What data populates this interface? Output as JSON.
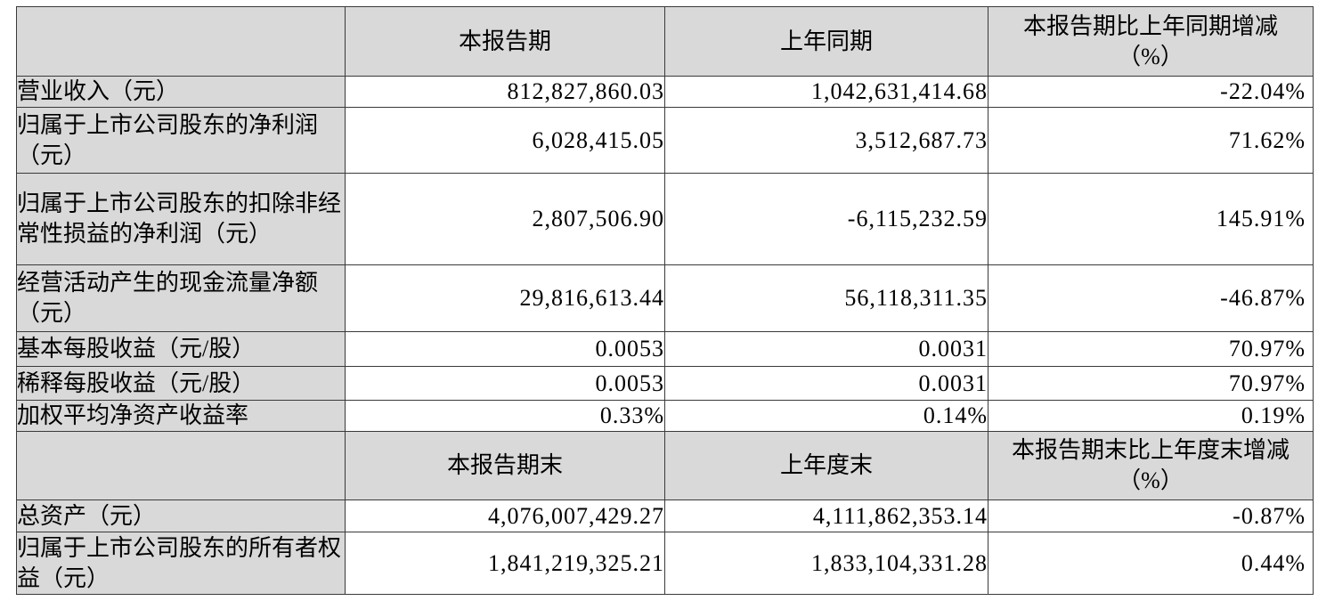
{
  "colors": {
    "header_fill": "#d9d9d9",
    "label_column_fill": "#d9d9d9",
    "data_cell_fill": "#ffffff",
    "border": "#3a3a3a",
    "text": "#000000"
  },
  "headers": [
    {
      "blank": "",
      "period_current": "本报告期",
      "period_prior": "上年同期",
      "change_line1": "本报告期比上年同期增减",
      "change_line2": "（%）"
    },
    {
      "blank": "",
      "period_current": "本报告期末",
      "period_prior": "上年度末",
      "change_line1": "本报告期末比上年度末增减",
      "change_line2": "（%）"
    }
  ],
  "rows": [
    {
      "label": "营业收入（元）",
      "current": "812,827,860.03",
      "prior": "1,042,631,414.68",
      "change": "-22.04%"
    },
    {
      "label": "归属于上市公司股东的净利润（元）",
      "current": "6,028,415.05",
      "prior": "3,512,687.73",
      "change": "71.62%"
    },
    {
      "label": "归属于上市公司股东的扣除非经常性损益的净利润（元）",
      "current": "2,807,506.90",
      "prior": "-6,115,232.59",
      "change": "145.91%"
    },
    {
      "label": "经营活动产生的现金流量净额（元）",
      "current": "29,816,613.44",
      "prior": "56,118,311.35",
      "change": "-46.87%"
    },
    {
      "label": "基本每股收益（元/股）",
      "current": "0.0053",
      "prior": "0.0031",
      "change": "70.97%"
    },
    {
      "label": "稀释每股收益（元/股）",
      "current": "0.0053",
      "prior": "0.0031",
      "change": "70.97%"
    },
    {
      "label": "加权平均净资产收益率",
      "current": "0.33%",
      "prior": "0.14%",
      "change": "0.19%"
    },
    {
      "label": "总资产（元）",
      "current": "4,076,007,429.27",
      "prior": "4,111,862,353.14",
      "change": "-0.87%"
    },
    {
      "label": "归属于上市公司股东的所有者权益（元）",
      "current": "1,841,219,325.21",
      "prior": "1,833,104,331.28",
      "change": "0.44%"
    }
  ]
}
